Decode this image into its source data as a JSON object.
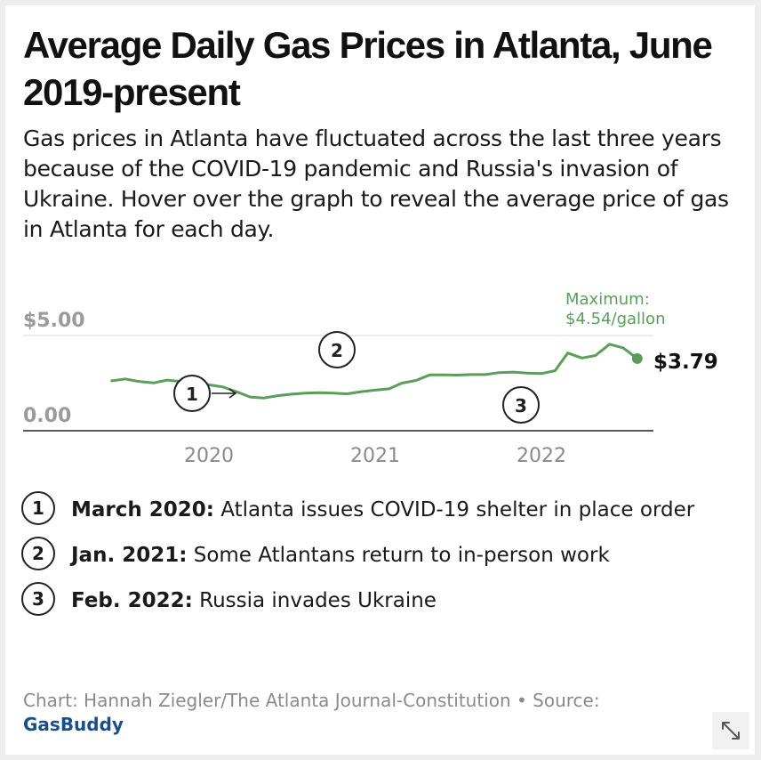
{
  "title": "Average Daily Gas Prices in Atlanta, June 2019-present",
  "subtitle": "Gas prices in Atlanta have fluctuated across the last three years because of the COVID-19 pandemic and Russia's invasion of Ukraine. Hover over the graph to reveal the average price of gas in Atlanta for each day.",
  "chart_data": {
    "type": "line",
    "title": "Average Daily Gas Prices in Atlanta, June 2019-present",
    "xlabel": "",
    "ylabel": "",
    "ylim": [
      0,
      5
    ],
    "y_ticks": [
      "$5.00",
      "0.00"
    ],
    "x_ticks": [
      "2020",
      "2021",
      "2022"
    ],
    "grid": true,
    "color": "#5a9e5a",
    "series": [
      {
        "x": [
          "2019-06-01",
          "2019-07-01",
          "2019-08-01",
          "2019-09-01",
          "2019-10-01",
          "2019-11-01",
          "2019-12-01",
          "2020-01-01",
          "2020-02-01",
          "2020-03-01",
          "2020-04-01",
          "2020-05-01",
          "2020-06-01",
          "2020-07-01",
          "2020-08-01",
          "2020-09-01",
          "2020-10-01",
          "2020-11-01",
          "2020-12-01",
          "2021-01-01",
          "2021-02-01",
          "2021-03-01",
          "2021-04-01",
          "2021-05-01",
          "2021-06-01",
          "2021-07-01",
          "2021-08-01",
          "2021-09-01",
          "2021-10-01",
          "2021-11-01",
          "2021-12-01",
          "2022-01-01",
          "2022-02-01",
          "2022-03-01",
          "2022-04-01",
          "2022-05-01",
          "2022-06-01",
          "2022-07-01",
          "2022-08-01"
        ],
        "y": [
          2.62,
          2.72,
          2.58,
          2.51,
          2.66,
          2.58,
          2.48,
          2.41,
          2.3,
          2.05,
          1.77,
          1.72,
          1.84,
          1.92,
          1.97,
          2.0,
          1.97,
          1.94,
          2.05,
          2.13,
          2.2,
          2.5,
          2.64,
          2.93,
          2.93,
          2.92,
          2.95,
          2.95,
          3.05,
          3.08,
          3.03,
          3.0,
          3.15,
          4.08,
          3.82,
          3.95,
          4.54,
          4.35,
          3.79
        ]
      }
    ],
    "annotations": [
      {
        "label": "Maximum:",
        "value": "$4.54/gallon"
      },
      {
        "label": "$3.79"
      }
    ],
    "markers": [
      {
        "id": "1",
        "date": "2020-03-01"
      },
      {
        "id": "2",
        "date": "2021-01-01"
      },
      {
        "id": "3",
        "date": "2022-02-01"
      }
    ]
  },
  "notes": [
    {
      "num": "1",
      "bold": "March 2020:",
      "text": " Atlanta issues COVID-19 shelter in place order"
    },
    {
      "num": "2",
      "bold": "Jan. 2021:",
      "text": " Some Atlantans return to in-person work"
    },
    {
      "num": "3",
      "bold": "Feb. 2022:",
      "text": " Russia invades Ukraine"
    }
  ],
  "source": {
    "prefix": "Chart: Hannah Ziegler/The Atlanta Journal-Constitution • Source:",
    "link": "GasBuddy"
  }
}
